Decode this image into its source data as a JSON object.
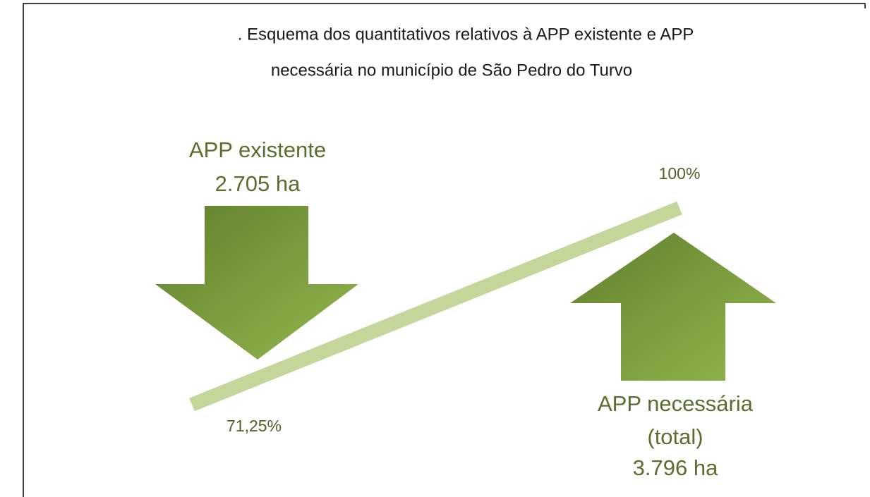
{
  "title": {
    "lines": [
      ". Esquema dos quantitativos relativos à APP existente e APP",
      "necessária no município de São Pedro do Turvo"
    ]
  },
  "left_arrow": {
    "lines": [
      "APP existente",
      "2.705 ha"
    ]
  },
  "right_arrow": {
    "lines": [
      "APP necessária",
      "(total)",
      "3.796 ha"
    ]
  },
  "bar": {
    "start_label": "71,25%",
    "end_label": "100%"
  }
}
